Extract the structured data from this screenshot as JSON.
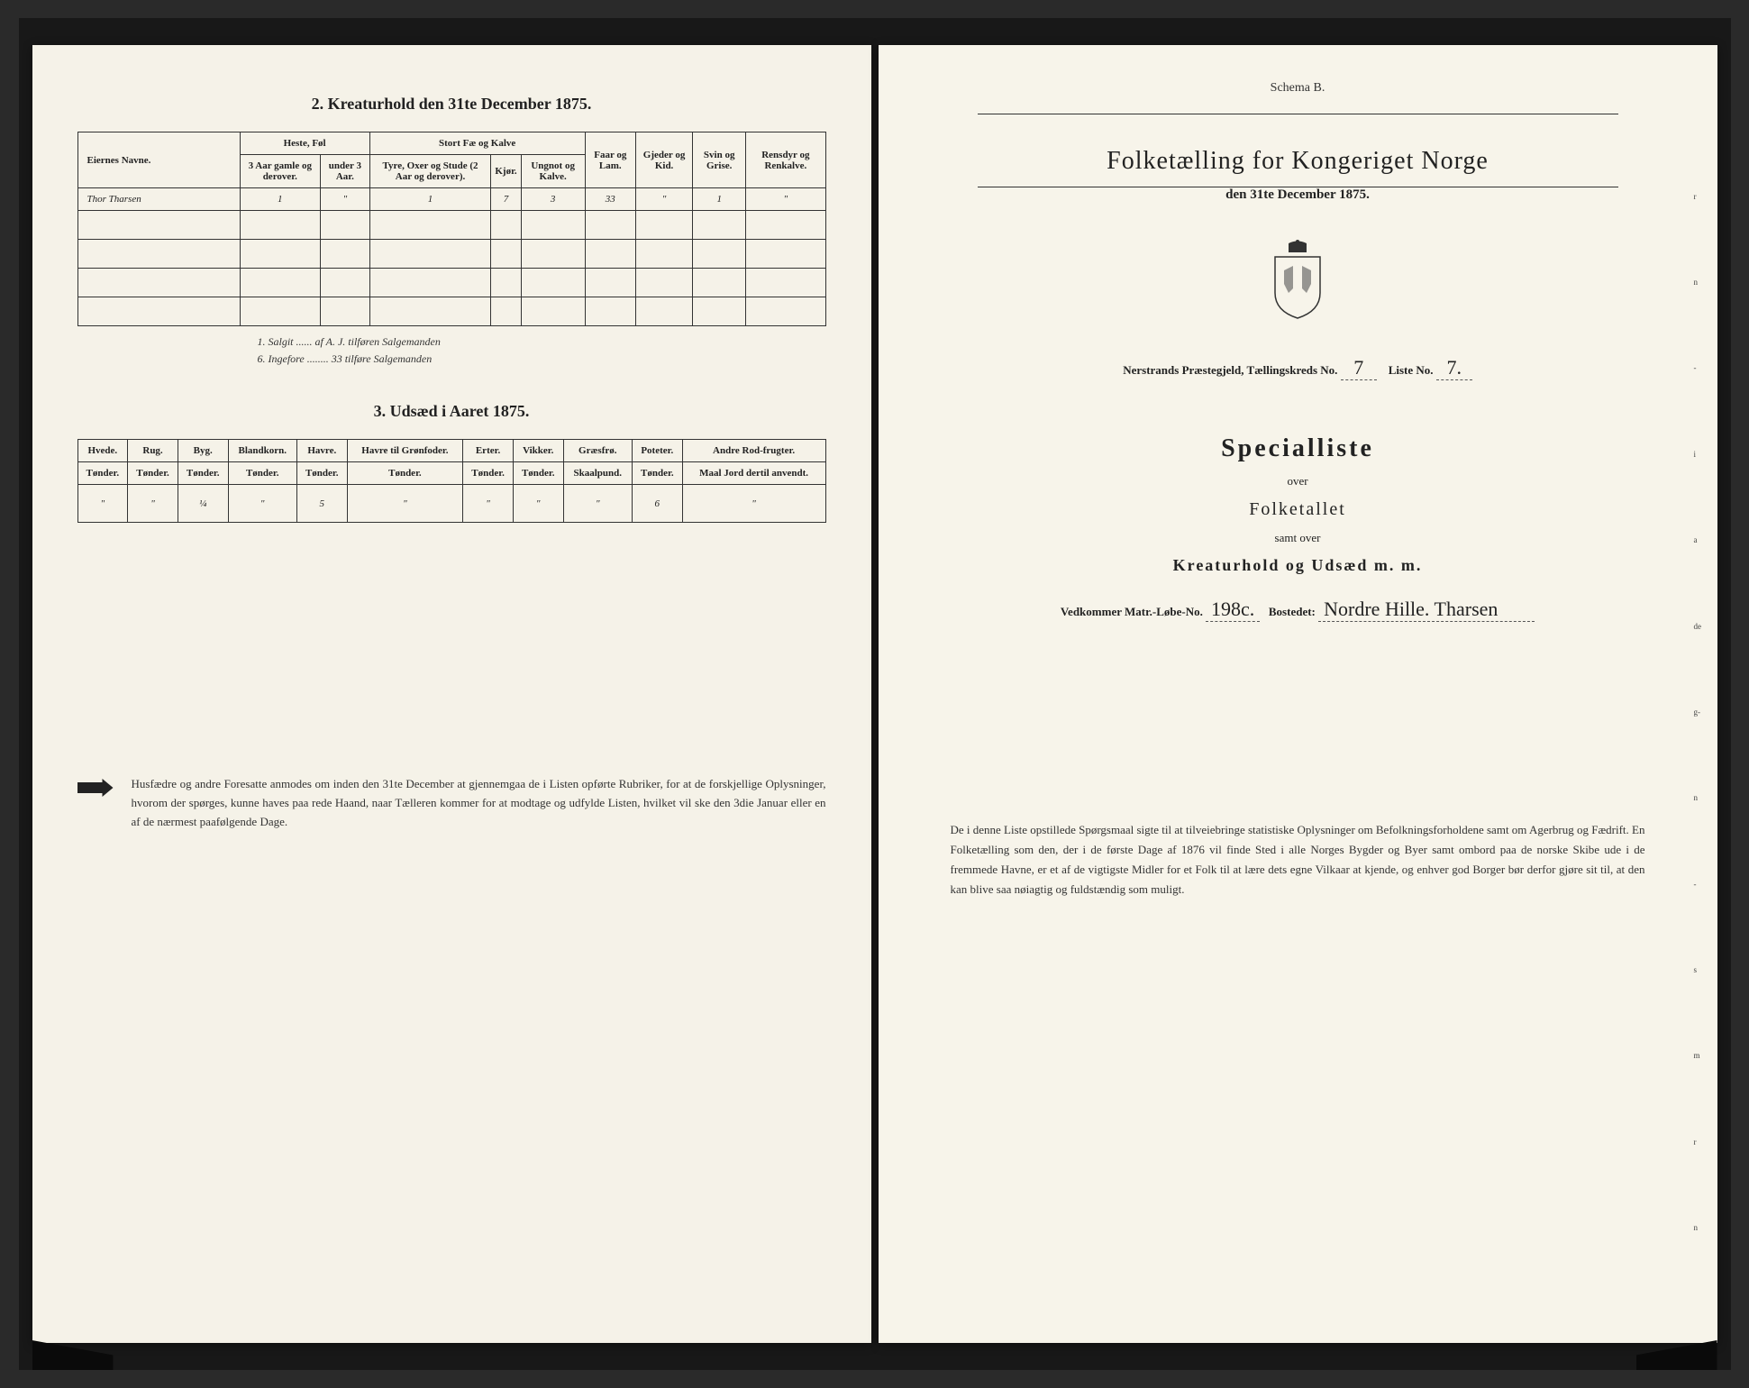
{
  "leftPage": {
    "section2": {
      "title": "2.  Kreaturhold den 31te December 1875.",
      "headers": {
        "name": "Eiernes Navne.",
        "group_heste": "Heste, Føl",
        "group_stort": "Stort Fæ og Kalve",
        "h_heste3": "3 Aar gamle og derover.",
        "h_hesteU3": "under 3 Aar.",
        "h_tyre": "Tyre, Oxer og Stude (2 Aar og derover).",
        "h_kjor": "Kjør.",
        "h_ungnot": "Ungnot og Kalve.",
        "h_faar": "Faar og Lam.",
        "h_gjeder": "Gjeder og Kid.",
        "h_svin": "Svin og Grise.",
        "h_rensdyr": "Rensdyr og Renkalve."
      },
      "row": {
        "name": "Thor Tharsen",
        "v1": "1",
        "v2": "\"",
        "v3": "1",
        "v4": "7",
        "v5": "3",
        "v6": "33",
        "v7": "\"",
        "v8": "1",
        "v9": "\""
      },
      "notes": [
        "1. Salgit ...... af A. J. tilføren Salgemanden",
        "6. Ingefore ........ 33 tilføre Salgemanden"
      ]
    },
    "section3": {
      "title": "3.  Udsæd i Aaret 1875.",
      "headers": [
        "Hvede.",
        "Rug.",
        "Byg.",
        "Blandkorn.",
        "Havre.",
        "Havre til Grønfoder.",
        "Erter.",
        "Vikker.",
        "Græsfrø.",
        "Poteter.",
        "Andre Rod-frugter."
      ],
      "subheaders": [
        "Tønder.",
        "Tønder.",
        "Tønder.",
        "Tønder.",
        "Tønder.",
        "Tønder.",
        "Tønder.",
        "Tønder.",
        "Skaalpund.",
        "Tønder.",
        "Maal Jord dertil anvendt."
      ],
      "row": [
        "\"",
        "\"",
        "¼",
        "\"",
        "5",
        "\"",
        "\"",
        "\"",
        "\"",
        "6",
        "\""
      ]
    },
    "footer": "Husfædre og andre Foresatte anmodes om inden den 31te December at gjennemgaa de i Listen opførte Rubriker, for at de forskjellige Oplysninger, hvorom der spørges, kunne haves paa rede Haand, naar Tælleren kommer for at modtage og udfylde Listen, hvilket vil ske den 3die Januar eller en af de nærmest paafølgende Dage."
  },
  "rightPage": {
    "schema": "Schema B.",
    "mainTitle": "Folketælling for Kongeriget Norge",
    "subDate": "den 31te December 1875.",
    "parishLine": {
      "prefix": "Nerstrands Præstegjeld,  Tællingskreds No.",
      "kreds": "7",
      "listeLabel": "Liste No.",
      "liste": "7."
    },
    "specialTitle": "Specialliste",
    "over": "over",
    "folket": "Folketallet",
    "samt": "samt over",
    "kreatur": "Kreaturhold og Udsæd m. m.",
    "vedkommer": {
      "prefix": "Vedkommer Matr.-Løbe-No.",
      "num": "198c.",
      "bostLabel": "Bostedet:",
      "bost": "Nordre Hille. Tharsen"
    },
    "bottomPara": "De i denne Liste opstillede Spørgsmaal sigte til at tilveiebringe statistiske Oplysninger om Befolkningsforholdene samt om Agerbrug og Fædrift.  En Folketælling som den, der i de første Dage af 1876 vil finde Sted i alle Norges Bygder og Byer samt ombord paa de norske Skibe ude i de fremmede Havne, er et af de vigtigste Midler for et Folk til at lære dets egne Vilkaar at kjende, og enhver god Borger bør derfor gjøre sit til, at den kan blive saa nøiagtig og fuldstændig som muligt."
  }
}
